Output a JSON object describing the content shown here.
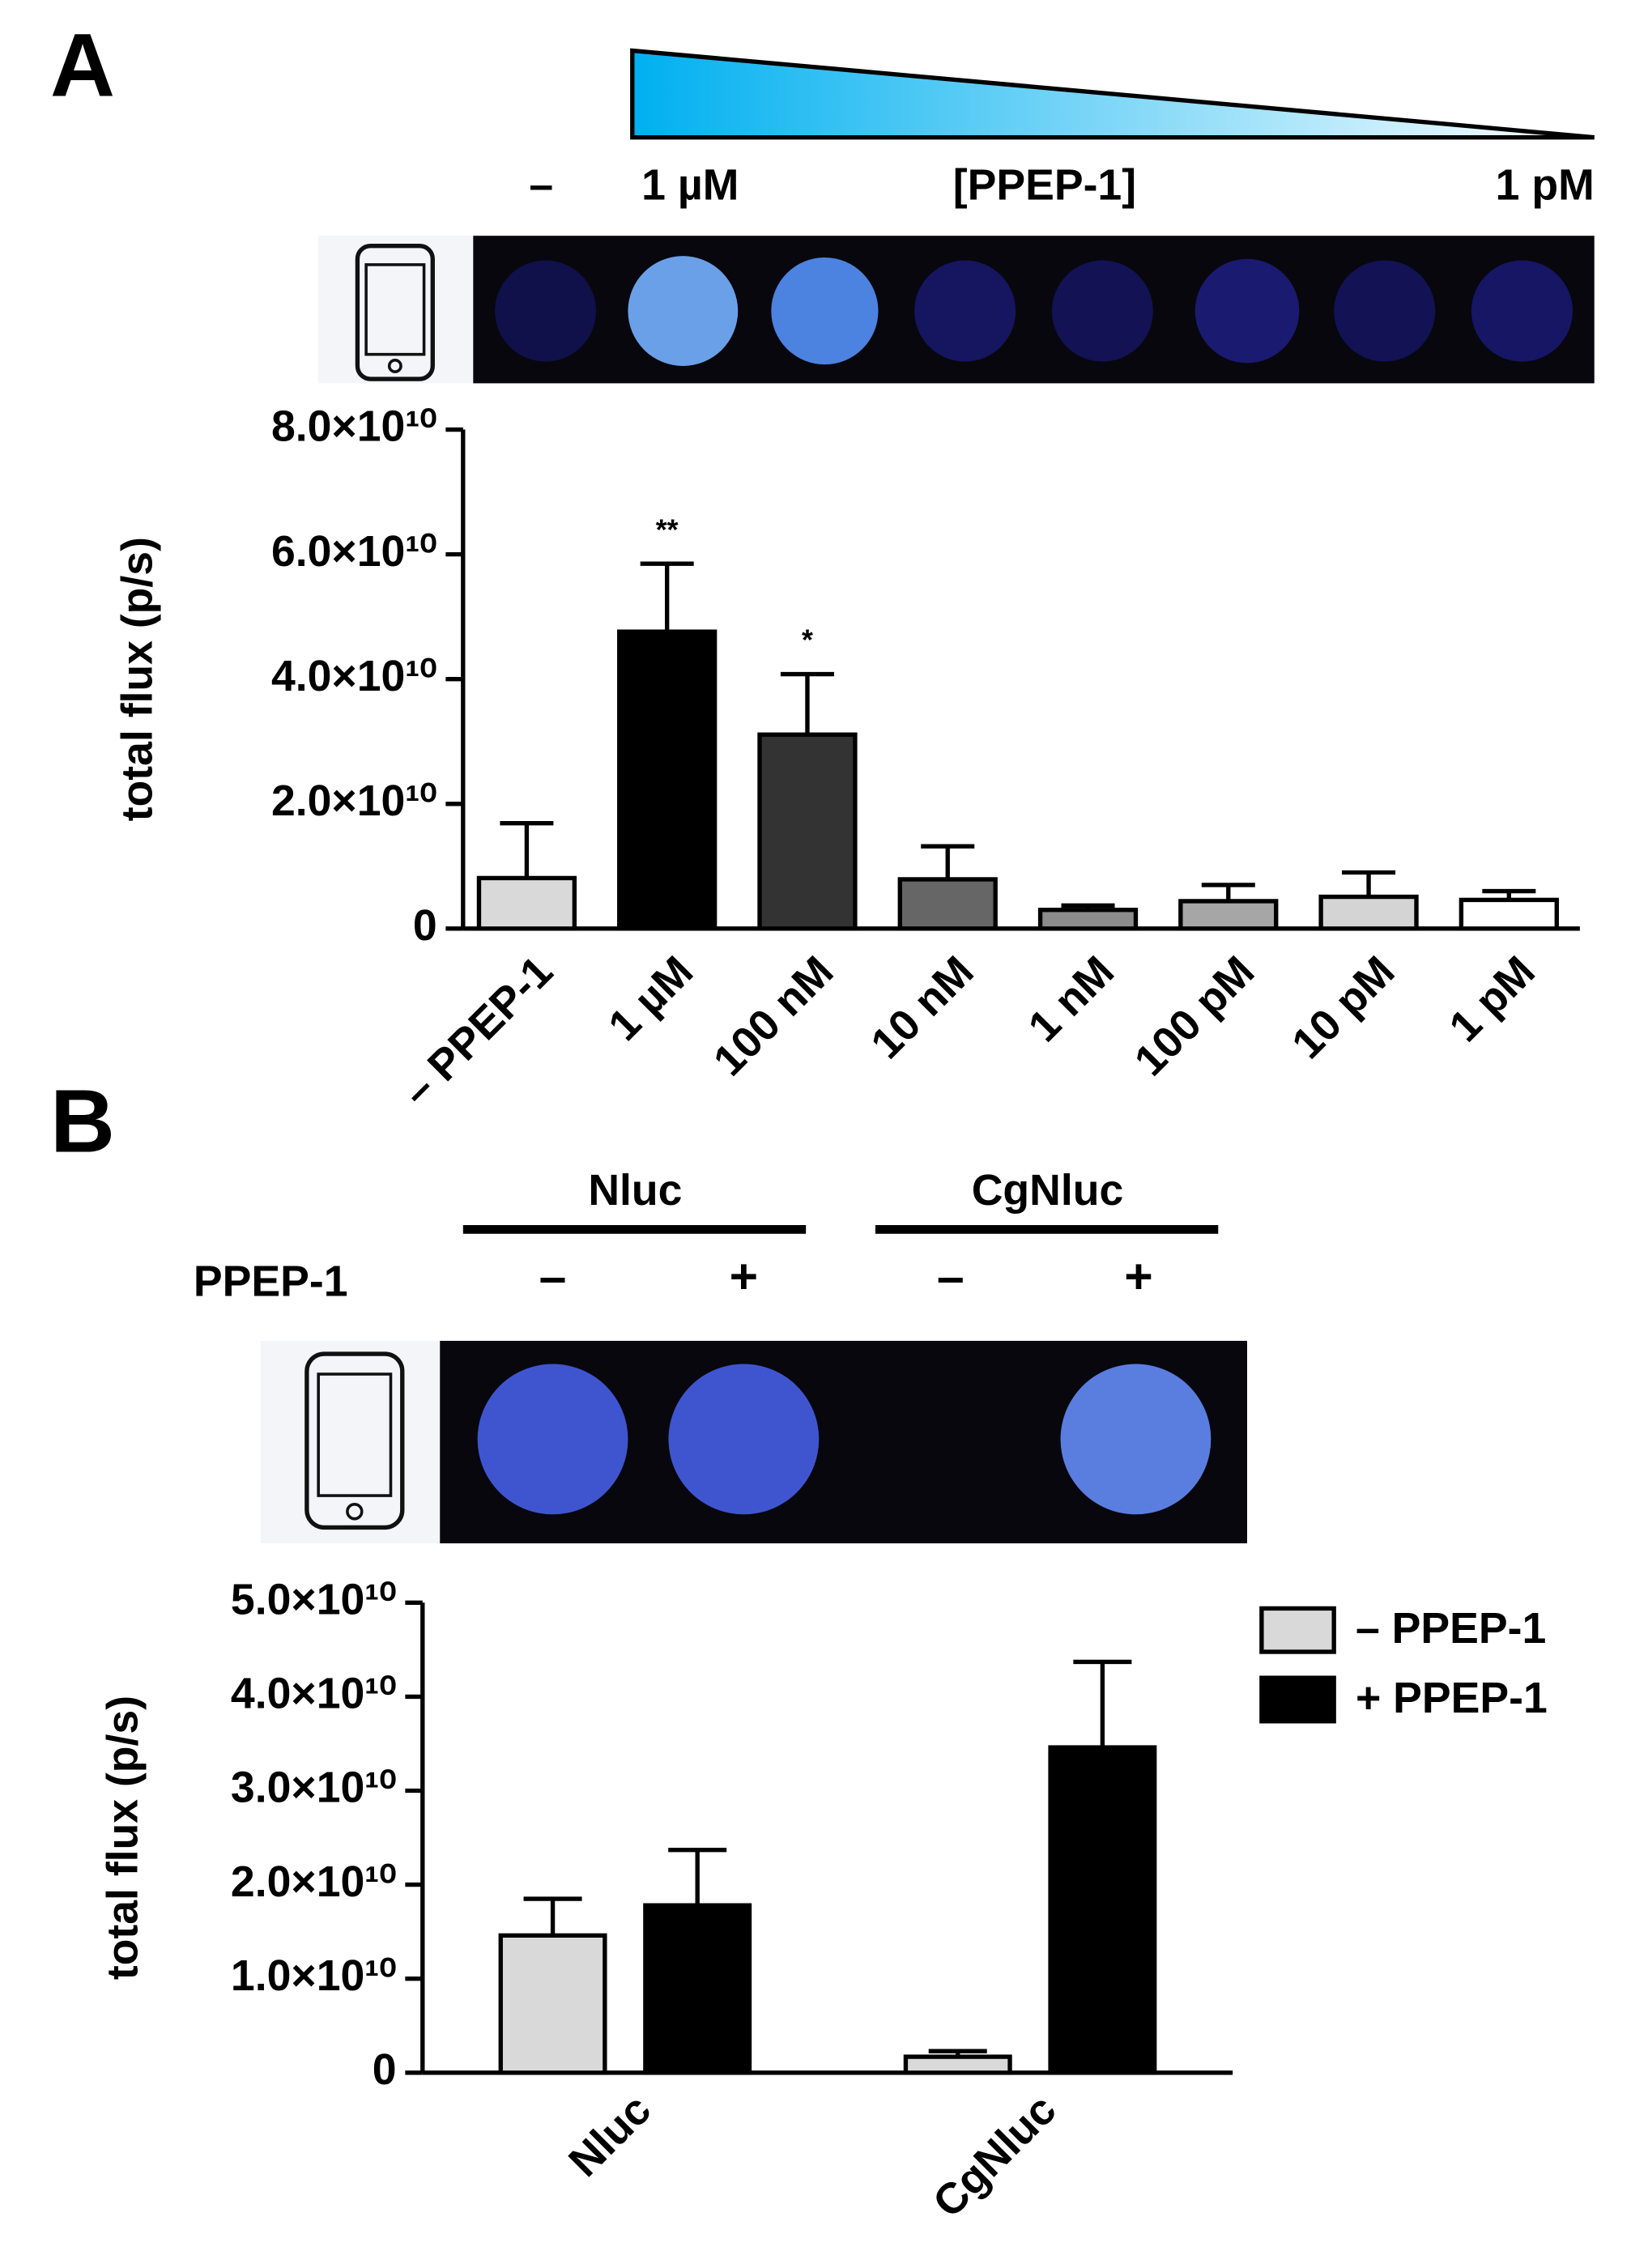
{
  "panel_a": {
    "label": "A",
    "gradient_labels": [
      "–",
      "1 µM",
      "[PPEP-1]",
      "1 pM"
    ]
  },
  "panel_b": {
    "label": "B",
    "groups": [
      "Nluc",
      "CgNluc"
    ],
    "row_label": "PPEP-1",
    "signs": [
      "–",
      "+",
      "–",
      "+"
    ]
  },
  "chart_data": [
    {
      "type": "bar",
      "ylabel": "total flux (p/s)",
      "categories": [
        "– PPEP-1",
        "1 µM",
        "100 nM",
        "10 nM",
        "1 nM",
        "100 pM",
        "10 pM",
        "1 pM"
      ],
      "values": [
        8100000000,
        47600000000,
        31100000000,
        7900000000,
        3000000000,
        4400000000,
        5100000000,
        4600000000
      ],
      "errors": [
        8800000000,
        10900000000,
        9700000000,
        5300000000,
        700000000,
        2600000000,
        3900000000,
        1400000000
      ],
      "colors": [
        "#d9d9d9",
        "#000000",
        "#333333",
        "#666666",
        "#8c8c8c",
        "#a6a6a6",
        "#d4d4d4",
        "#ffffff"
      ],
      "annotations": [
        null,
        "**",
        "*",
        null,
        null,
        null,
        null,
        null
      ],
      "ylim": [
        0,
        80000000000
      ],
      "yticks": [
        0,
        {
          "value": 20000000000,
          "label": "2.0×10¹⁰"
        },
        {
          "value": 40000000000,
          "label": "4.0×10¹⁰"
        },
        {
          "value": 60000000000,
          "label": "6.0×10¹⁰"
        },
        {
          "value": 80000000000,
          "label": "8.0×10¹⁰"
        }
      ]
    },
    {
      "type": "grouped-bar",
      "ylabel": "total flux (p/s)",
      "categories": [
        "Nluc",
        "CgNluc"
      ],
      "series": [
        {
          "name": "– PPEP-1",
          "color": "#d9d9d9",
          "values": [
            14600000000,
            1700000000
          ],
          "errors": [
            3900000000,
            600000000
          ]
        },
        {
          "name": "+ PPEP-1",
          "color": "#000000",
          "values": [
            17800000000,
            34600000000
          ],
          "errors": [
            5900000000,
            9100000000
          ]
        }
      ],
      "legend": "top-right",
      "ylim": [
        0,
        50000000000
      ],
      "yticks": [
        0,
        {
          "value": 10000000000,
          "label": "1.0×10¹⁰"
        },
        {
          "value": 20000000000,
          "label": "2.0×10¹⁰"
        },
        {
          "value": 30000000000,
          "label": "3.0×10¹⁰"
        },
        {
          "value": 40000000000,
          "label": "4.0×10¹⁰"
        },
        {
          "value": 50000000000,
          "label": "5.0×10¹⁰"
        }
      ]
    }
  ]
}
